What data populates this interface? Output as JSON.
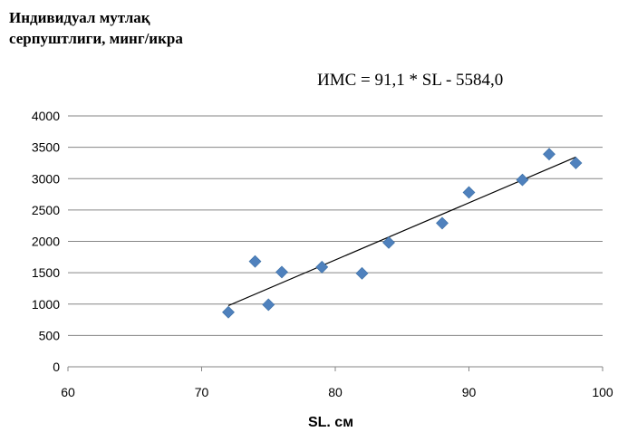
{
  "chart_data": {
    "type": "scatter",
    "ylabel_lines": [
      "Индивидуал мутлақ",
      "серпуштлиги, минг/икра"
    ],
    "xlabel": "SL. см",
    "equation": "ИМС = 91,1 * SL - 5584,0",
    "xlim": [
      60,
      100
    ],
    "ylim": [
      0,
      4000
    ],
    "xticks": [
      60,
      70,
      80,
      90,
      100
    ],
    "yticks": [
      0,
      500,
      1000,
      1500,
      2000,
      2500,
      3000,
      3500,
      4000
    ],
    "grid": "horizontal",
    "series": [
      {
        "marker": "diamond",
        "color": "#4f81bd",
        "points": [
          {
            "x": 72,
            "y": 870
          },
          {
            "x": 74,
            "y": 1680
          },
          {
            "x": 75,
            "y": 990
          },
          {
            "x": 76,
            "y": 1510
          },
          {
            "x": 79,
            "y": 1590
          },
          {
            "x": 82,
            "y": 1490
          },
          {
            "x": 84,
            "y": 1980
          },
          {
            "x": 88,
            "y": 2290
          },
          {
            "x": 90,
            "y": 2780
          },
          {
            "x": 94,
            "y": 2980
          },
          {
            "x": 96,
            "y": 3390
          },
          {
            "x": 98,
            "y": 3250
          }
        ]
      }
    ],
    "trendline": {
      "slope": 91.1,
      "intercept": -5584.0,
      "x_from": 72,
      "x_to": 98,
      "color": "#000000"
    }
  }
}
